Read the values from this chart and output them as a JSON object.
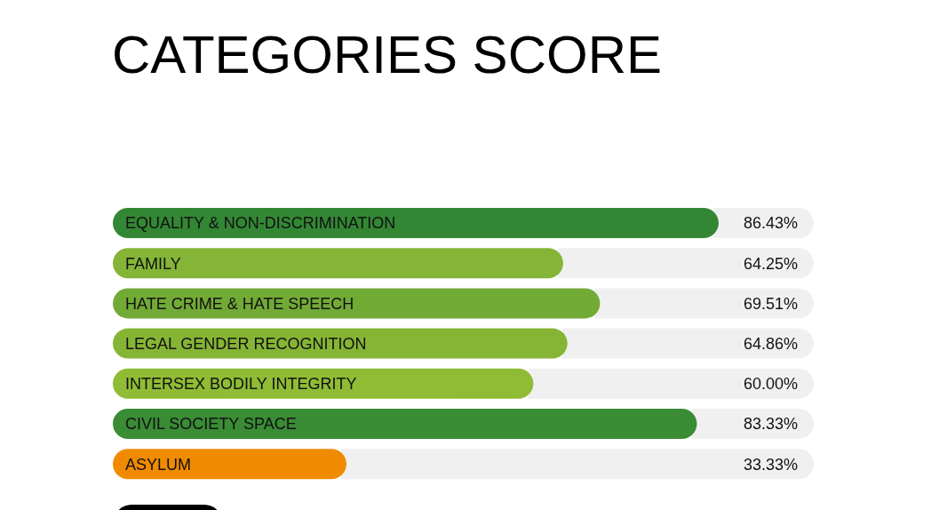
{
  "chart_data": {
    "type": "bar",
    "title": "CATEGORIES SCORE",
    "orientation": "horizontal",
    "categories": [
      "EQUALITY & NON-DISCRIMINATION",
      "FAMILY",
      "HATE CRIME & HATE SPEECH",
      "LEGAL GENDER RECOGNITION",
      "INTERSEX BODILY INTEGRITY",
      "CIVIL SOCIETY SPACE",
      "ASYLUM"
    ],
    "values": [
      86.43,
      64.25,
      69.51,
      64.86,
      60.0,
      83.33,
      33.33
    ],
    "value_labels": [
      "86.43%",
      "64.25%",
      "69.51%",
      "64.86%",
      "60.00%",
      "83.33%",
      "33.33%"
    ],
    "colors": [
      "#338734",
      "#84b536",
      "#72aa36",
      "#86b535",
      "#8fbc34",
      "#3a8c35",
      "#f08a00"
    ],
    "xlim": [
      0,
      100
    ]
  }
}
